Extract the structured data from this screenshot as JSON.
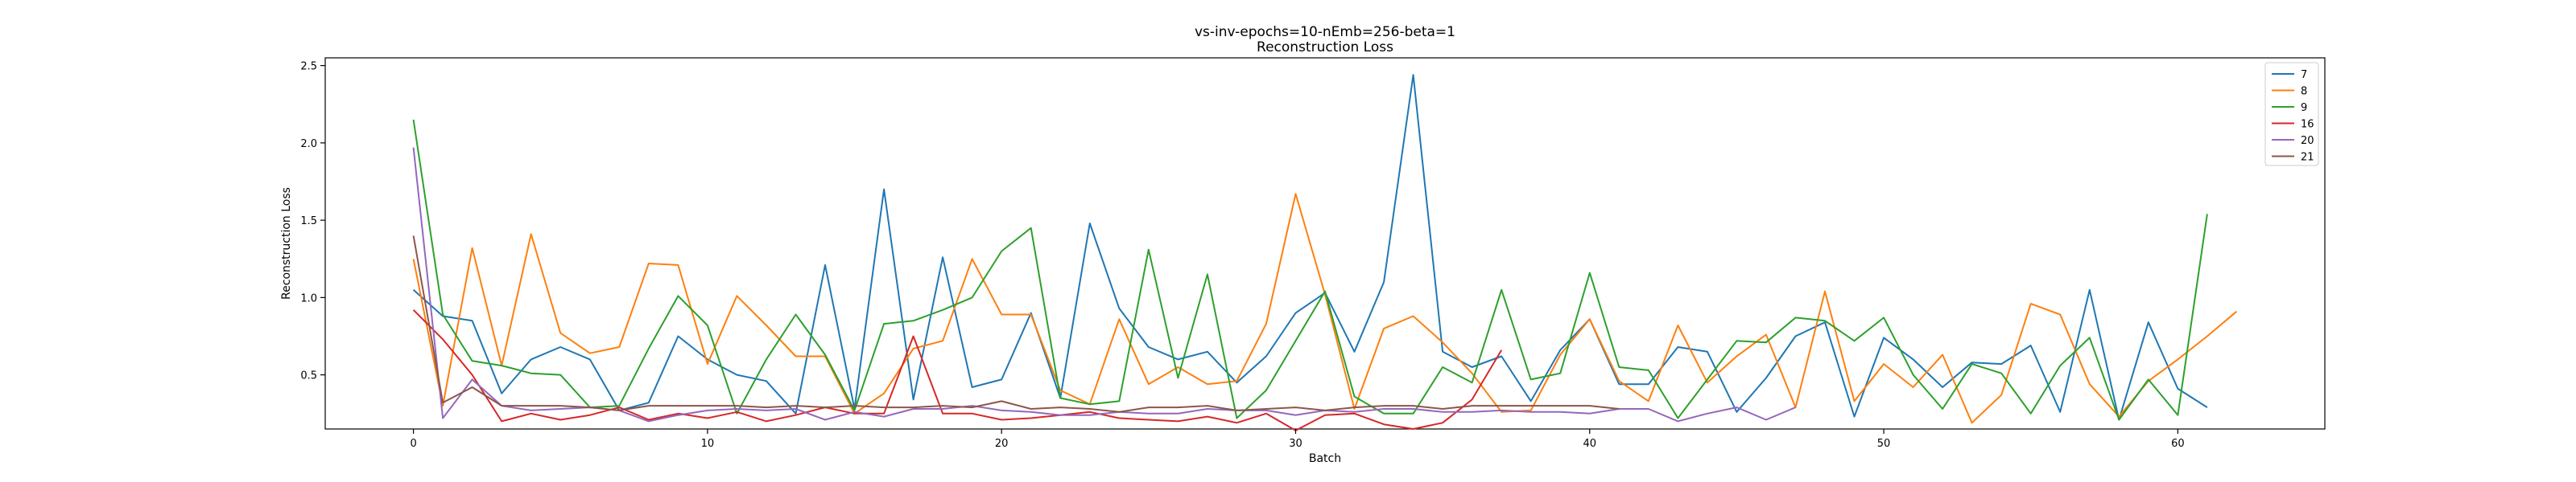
{
  "chart_data": {
    "type": "line",
    "title": "vs-inv-epochs=10-nEmb=256-beta=1",
    "subtitle": "Reconstruction Loss",
    "xlabel": "Batch",
    "ylabel": "Reconstruction Loss",
    "xlim": [
      -3,
      65
    ],
    "ylim": [
      0.15,
      2.55
    ],
    "xticks": [
      0,
      10,
      20,
      30,
      40,
      50,
      60
    ],
    "yticks": [
      0.5,
      1.0,
      1.5,
      2.0,
      2.5
    ],
    "xtick_labels": [
      "0",
      "10",
      "20",
      "30",
      "40",
      "50",
      "60"
    ],
    "ytick_labels": [
      "0.5",
      "1.0",
      "1.5",
      "2.0",
      "2.5"
    ],
    "grid": false,
    "legend_position": "top-right",
    "series": [
      {
        "name": "7",
        "color": "#1f77b4",
        "values": [
          1.05,
          0.88,
          0.85,
          0.38,
          0.6,
          0.68,
          0.6,
          0.27,
          0.32,
          0.75,
          0.6,
          0.5,
          0.46,
          0.25,
          1.21,
          0.28,
          1.7,
          0.34,
          1.26,
          0.42,
          0.47,
          0.9,
          0.35,
          1.48,
          0.93,
          0.68,
          0.6,
          0.65,
          0.45,
          0.62,
          0.9,
          1.03,
          0.65,
          1.1,
          2.44,
          0.65,
          0.55,
          0.62,
          0.33,
          0.66,
          0.86,
          0.44,
          0.44,
          0.68,
          0.65,
          0.26,
          0.48,
          0.75,
          0.84,
          0.23,
          0.74,
          0.6,
          0.42,
          0.58,
          0.57,
          0.69,
          0.26,
          1.05,
          0.21,
          0.84,
          0.41,
          0.29
        ]
      },
      {
        "name": "8",
        "color": "#ff7f0e",
        "values": [
          1.25,
          0.3,
          1.32,
          0.56,
          1.41,
          0.77,
          0.64,
          0.68,
          1.22,
          1.21,
          0.57,
          1.01,
          0.82,
          0.62,
          0.62,
          0.25,
          0.38,
          0.67,
          0.72,
          1.25,
          0.89,
          0.89,
          0.4,
          0.31,
          0.86,
          0.44,
          0.55,
          0.44,
          0.46,
          0.83,
          1.67,
          1.02,
          0.28,
          0.8,
          0.88,
          0.71,
          0.51,
          0.26,
          0.27,
          0.63,
          0.86,
          0.46,
          0.33,
          0.82,
          0.45,
          0.62,
          0.76,
          0.29,
          1.04,
          0.33,
          0.57,
          0.42,
          0.63,
          0.19,
          0.37,
          0.96,
          0.89,
          0.44,
          0.23,
          0.46,
          0.6,
          0.75,
          0.91
        ]
      },
      {
        "name": "9",
        "color": "#2ca02c",
        "values": [
          2.15,
          0.89,
          0.59,
          0.56,
          0.51,
          0.5,
          0.29,
          0.3,
          0.67,
          1.01,
          0.82,
          0.25,
          0.6,
          0.89,
          0.63,
          0.27,
          0.83,
          0.85,
          0.92,
          1.0,
          1.3,
          1.45,
          0.35,
          0.31,
          0.33,
          1.31,
          0.48,
          1.15,
          0.22,
          0.4,
          0.72,
          1.04,
          0.36,
          0.25,
          0.25,
          0.55,
          0.45,
          1.05,
          0.47,
          0.51,
          1.16,
          0.55,
          0.53,
          0.22,
          0.47,
          0.72,
          0.71,
          0.87,
          0.85,
          0.72,
          0.87,
          0.5,
          0.28,
          0.57,
          0.51,
          0.25,
          0.56,
          0.74,
          0.21,
          0.47,
          0.24,
          1.54
        ]
      },
      {
        "name": "16",
        "color": "#d62728",
        "values": [
          0.92,
          0.73,
          0.5,
          0.2,
          0.25,
          0.21,
          0.24,
          0.29,
          0.21,
          0.25,
          0.22,
          0.26,
          0.2,
          0.24,
          0.29,
          0.25,
          0.25,
          0.75,
          0.25,
          0.25,
          0.21,
          0.22,
          0.24,
          0.26,
          0.22,
          0.21,
          0.2,
          0.23,
          0.19,
          0.25,
          0.14,
          0.24,
          0.25,
          0.18,
          0.15,
          0.19,
          0.34,
          0.66
        ]
      },
      {
        "name": "20",
        "color": "#9467bd",
        "values": [
          1.97,
          0.22,
          0.47,
          0.3,
          0.27,
          0.28,
          0.29,
          0.27,
          0.2,
          0.24,
          0.27,
          0.28,
          0.27,
          0.28,
          0.21,
          0.26,
          0.23,
          0.28,
          0.28,
          0.3,
          0.27,
          0.26,
          0.24,
          0.24,
          0.26,
          0.25,
          0.25,
          0.28,
          0.27,
          0.27,
          0.24,
          0.27,
          0.26,
          0.28,
          0.28,
          0.26,
          0.26,
          0.27,
          0.26,
          0.26,
          0.25,
          0.28,
          0.28,
          0.2,
          0.25,
          0.29,
          0.21,
          0.29
        ]
      },
      {
        "name": "21",
        "color": "#8c564b",
        "values": [
          1.4,
          0.32,
          0.42,
          0.3,
          0.3,
          0.3,
          0.29,
          0.27,
          0.3,
          0.3,
          0.3,
          0.3,
          0.29,
          0.3,
          0.29,
          0.3,
          0.29,
          0.29,
          0.3,
          0.29,
          0.33,
          0.28,
          0.29,
          0.28,
          0.26,
          0.29,
          0.29,
          0.3,
          0.27,
          0.28,
          0.29,
          0.27,
          0.29,
          0.3,
          0.3,
          0.28,
          0.3,
          0.3,
          0.3,
          0.3,
          0.3,
          0.28
        ]
      }
    ]
  }
}
